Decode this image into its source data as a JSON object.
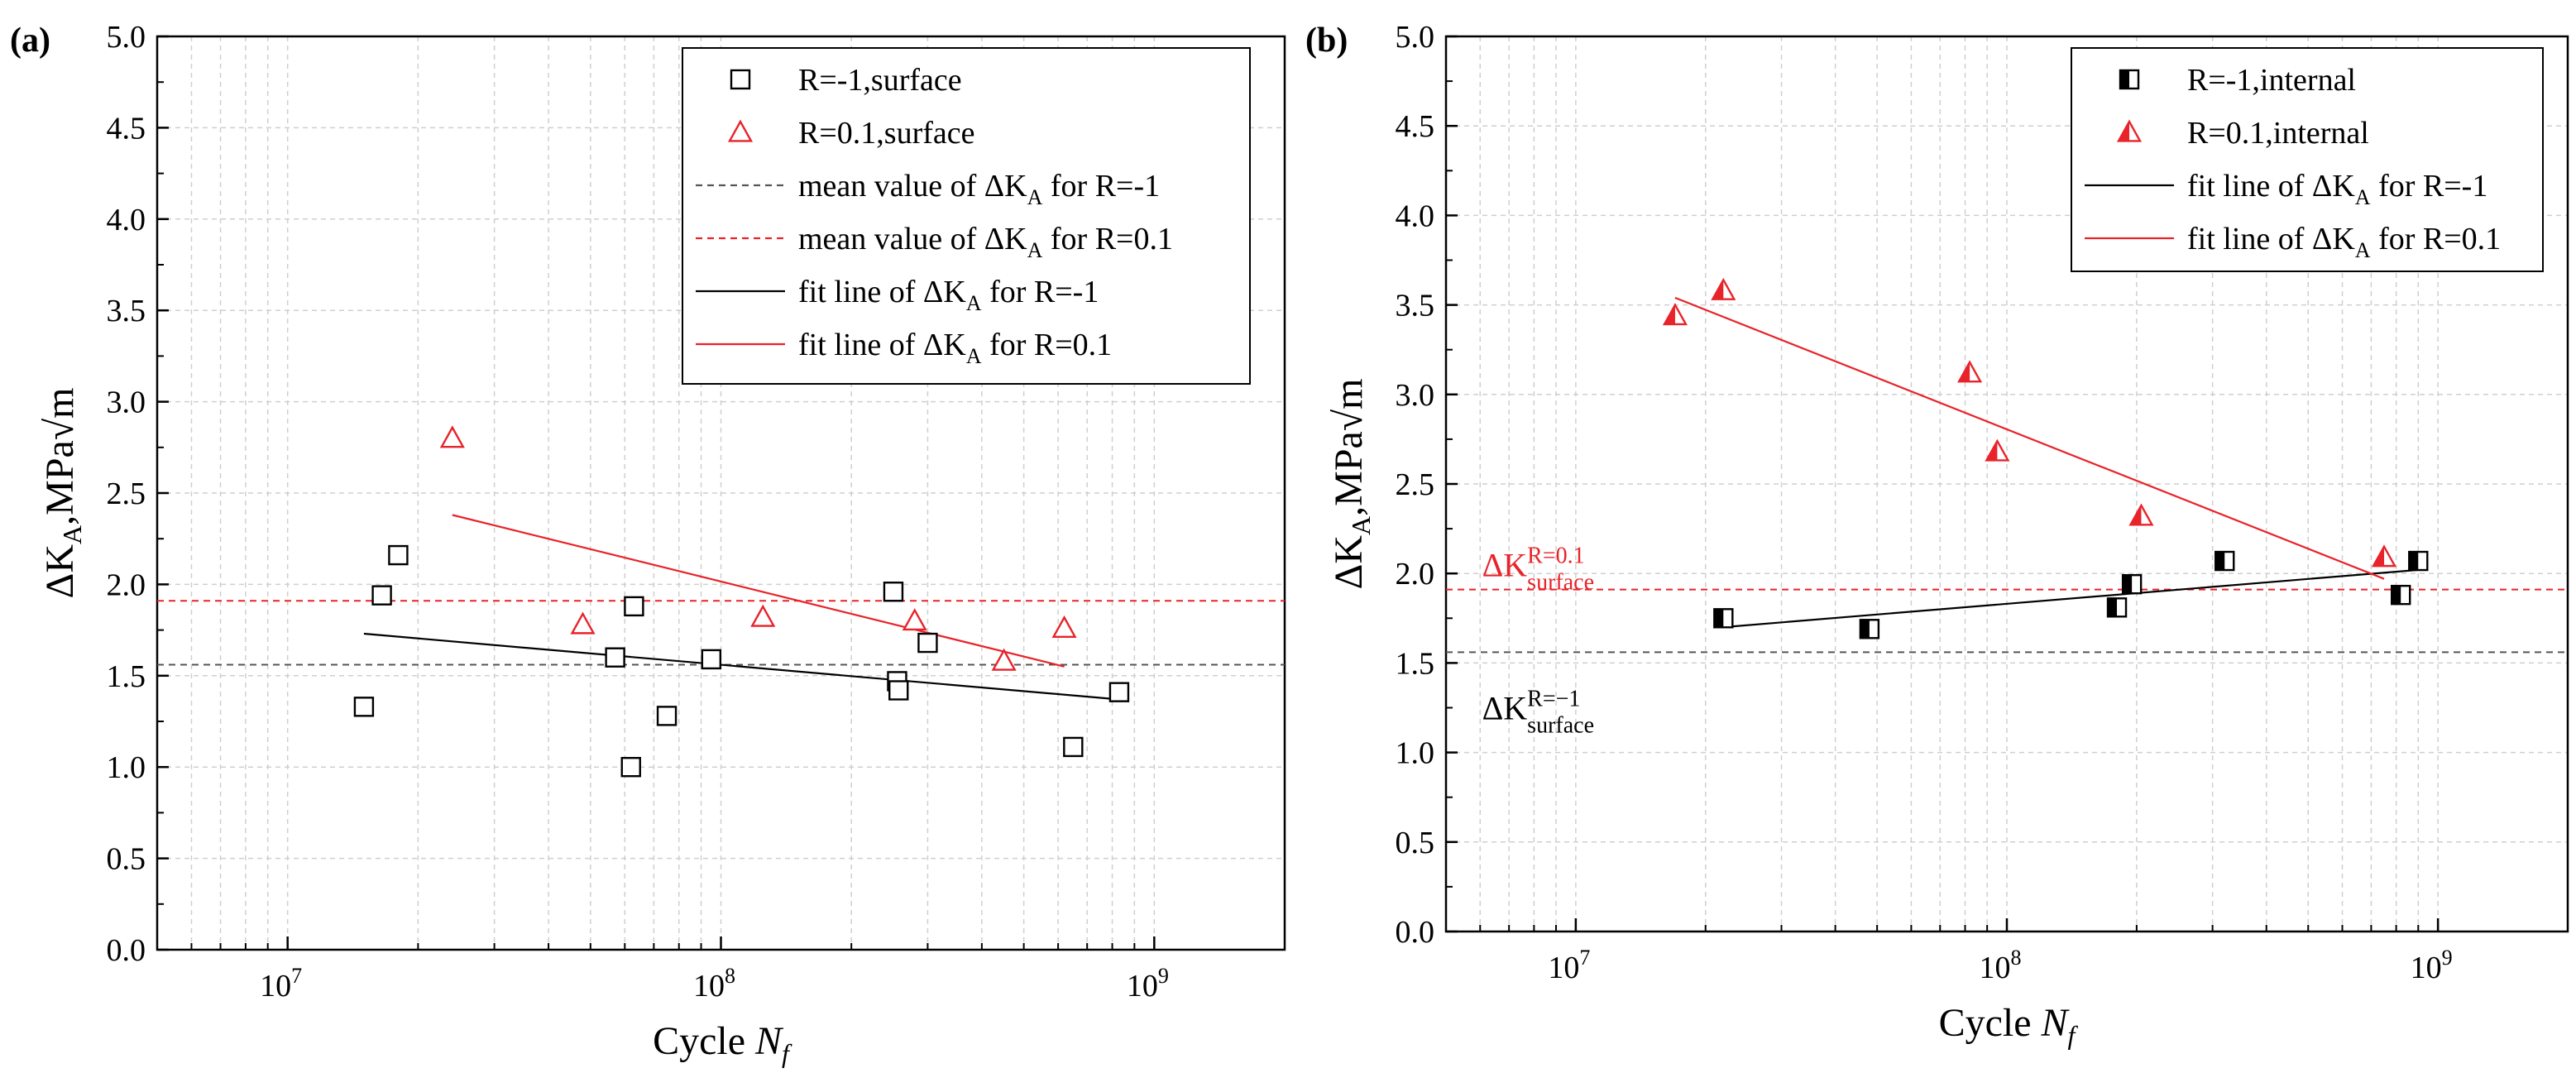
{
  "chart_data": [
    {
      "panel_label": "(a)",
      "type": "scatter",
      "xscale": "log",
      "xlim": [
        5000000,
        2000000000
      ],
      "ylim": [
        0.0,
        5.0
      ],
      "x_ticks": [
        10000000,
        100000000,
        1000000000
      ],
      "x_tick_labels": [
        "10",
        "10",
        "10"
      ],
      "x_tick_exp": [
        "7",
        "8",
        "9"
      ],
      "y_ticks": [
        0.0,
        0.5,
        1.0,
        1.5,
        2.0,
        2.5,
        3.0,
        3.5,
        4.0,
        4.5,
        5.0
      ],
      "y_tick_labels": [
        "0.0",
        "0.5",
        "1.0",
        "1.5",
        "2.0",
        "2.5",
        "3.0",
        "3.5",
        "4.0",
        "4.5",
        "5.0"
      ],
      "xlabel": "Cycle ",
      "xlabel_var": "N",
      "xlabel_sub": "f",
      "ylabel_prefix": "ΔK",
      "ylabel_sub": "A",
      "ylabel_suffix": ",MPa√m",
      "grid": true,
      "legend_position": "top-right",
      "scatter_series": [
        {
          "name": "R=-1,surface",
          "marker": "open-square",
          "color": "#000000",
          "x": [
            15000000,
            16500000,
            18000000,
            57000000,
            62000000,
            63000000,
            75000000,
            95000000,
            250000000,
            255000000,
            257000000,
            300000000,
            650000000,
            830000000
          ],
          "y": [
            1.33,
            1.94,
            2.16,
            1.6,
            1.0,
            1.88,
            1.28,
            1.59,
            1.96,
            1.47,
            1.42,
            1.68,
            1.11,
            1.41
          ]
        },
        {
          "name": "R=0.1,surface",
          "marker": "open-triangle",
          "color": "#e8232a",
          "x": [
            24000000,
            48000000,
            125000000,
            280000000,
            450000000,
            620000000
          ],
          "y": [
            2.8,
            1.78,
            1.82,
            1.8,
            1.58,
            1.76
          ]
        }
      ],
      "reference_lines": [
        {
          "name": "mean value of ΔK_A for R=-1",
          "y": 1.56,
          "color": "#555555",
          "dashed": true
        },
        {
          "name": "mean value of ΔK_A for R=0.1",
          "y": 1.91,
          "color": "#e8232a",
          "dashed": true
        }
      ],
      "fit_lines": [
        {
          "name": "fit line of ΔK_A for R=-1",
          "x": [
            15000000,
            830000000
          ],
          "y": [
            1.73,
            1.37
          ],
          "color": "#000000"
        },
        {
          "name": "fit line of ΔK_A for R=0.1",
          "x": [
            24000000,
            620000000
          ],
          "y": [
            2.38,
            1.55
          ],
          "color": "#e8232a"
        }
      ],
      "legend_entries": [
        {
          "prefix": "R=-1,surface",
          "sub": "",
          "suffix": "",
          "type": "marker",
          "marker": "open-square",
          "color": "#000000"
        },
        {
          "prefix": "R=0.1,surface",
          "sub": "",
          "suffix": "",
          "type": "marker",
          "marker": "open-triangle",
          "color": "#e8232a"
        },
        {
          "prefix": "mean value of ΔK",
          "sub": "A",
          "suffix": " for R=-1",
          "type": "line",
          "dashed": true,
          "color": "#555555"
        },
        {
          "prefix": "mean value of ΔK",
          "sub": "A",
          "suffix": " for R=0.1",
          "type": "line",
          "dashed": true,
          "color": "#e8232a"
        },
        {
          "prefix": "fit line of ΔK",
          "sub": "A",
          "suffix": " for R=-1",
          "type": "line",
          "dashed": false,
          "color": "#000000"
        },
        {
          "prefix": "fit line of ΔK",
          "sub": "A",
          "suffix": " for R=0.1",
          "type": "line",
          "dashed": false,
          "color": "#e8232a"
        }
      ],
      "annotations": []
    },
    {
      "panel_label": "(b)",
      "type": "scatter",
      "xscale": "log",
      "xlim": [
        5000000,
        2000000000
      ],
      "ylim": [
        0.0,
        5.0
      ],
      "x_ticks": [
        10000000,
        100000000,
        1000000000
      ],
      "x_tick_labels": [
        "10",
        "10",
        "10"
      ],
      "x_tick_exp": [
        "7",
        "8",
        "9"
      ],
      "y_ticks": [
        0.0,
        0.5,
        1.0,
        1.5,
        2.0,
        2.5,
        3.0,
        3.5,
        4.0,
        4.5,
        5.0
      ],
      "y_tick_labels": [
        "0.0",
        "0.5",
        "1.0",
        "1.5",
        "2.0",
        "2.5",
        "3.0",
        "3.5",
        "4.0",
        "4.5",
        "5.0"
      ],
      "xlabel": "Cycle ",
      "xlabel_var": "N",
      "xlabel_sub": "f",
      "ylabel_prefix": "ΔK",
      "ylabel_sub": "A",
      "ylabel_suffix": ",MPa√m",
      "grid": true,
      "legend_position": "top-right",
      "scatter_series": [
        {
          "name": "R=-1,internal",
          "marker": "half-filled-square",
          "color": "#000000",
          "x": [
            22000000,
            48000000,
            180000000,
            195000000,
            320000000,
            820000000,
            900000000
          ],
          "y": [
            1.75,
            1.69,
            1.81,
            1.94,
            2.07,
            1.88,
            2.07
          ]
        },
        {
          "name": "R=0.1,internal",
          "marker": "half-filled-triangle",
          "color": "#e8232a",
          "x": [
            17000000,
            22000000,
            82000000,
            95000000,
            205000000,
            750000000
          ],
          "y": [
            3.44,
            3.58,
            3.12,
            2.68,
            2.32,
            2.09
          ]
        }
      ],
      "reference_lines": [
        {
          "name": "ΔK surface R=0.1",
          "y": 1.91,
          "color": "#e8232a",
          "dashed": true
        },
        {
          "name": "ΔK surface R=-1",
          "y": 1.56,
          "color": "#555555",
          "dashed": true
        }
      ],
      "fit_lines": [
        {
          "name": "fit line of ΔK_A for R=-1",
          "x": [
            22000000,
            900000000
          ],
          "y": [
            1.7,
            2.02
          ],
          "color": "#000000"
        },
        {
          "name": "fit line of ΔK_A for R=0.1",
          "x": [
            17000000,
            750000000
          ],
          "y": [
            3.54,
            1.97
          ],
          "color": "#e8232a"
        }
      ],
      "legend_entries": [
        {
          "prefix": "R=-1,internal",
          "sub": "",
          "suffix": "",
          "type": "marker",
          "marker": "half-filled-square",
          "color": "#000000"
        },
        {
          "prefix": "R=0.1,internal",
          "sub": "",
          "suffix": "",
          "type": "marker",
          "marker": "half-filled-triangle",
          "color": "#e8232a"
        },
        {
          "prefix": "fit line of ΔK",
          "sub": "A",
          "suffix": " for R=-1",
          "type": "line",
          "dashed": false,
          "color": "#000000"
        },
        {
          "prefix": "fit line of ΔK",
          "sub": "A",
          "suffix": " for R=0.1",
          "type": "line",
          "dashed": false,
          "color": "#e8232a"
        }
      ],
      "annotations": [
        {
          "main": "ΔK",
          "sup": "R=0.1",
          "sub": "surface",
          "color": "#e8232a",
          "anchor_x": 5500000,
          "anchor_y": 2.05
        },
        {
          "main": "ΔK",
          "sup": "R=−1",
          "sub": "surface",
          "color": "#000000",
          "anchor_x": 5500000,
          "anchor_y": 1.25
        }
      ]
    }
  ]
}
